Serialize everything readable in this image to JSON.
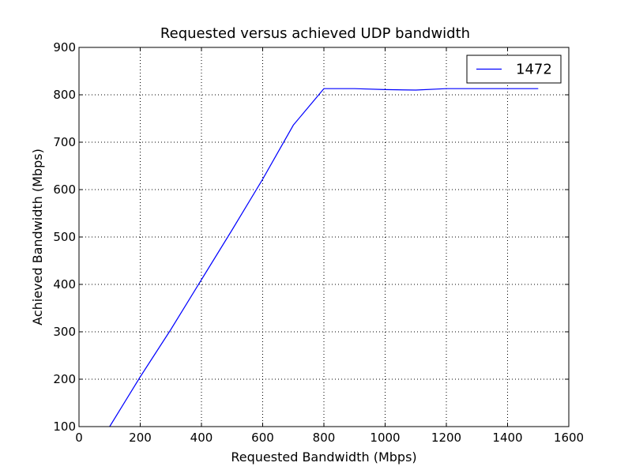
{
  "chart_data": {
    "type": "line",
    "title": "Requested versus achieved UDP bandwidth",
    "xlabel": "Requested Bandwidth (Mbps)",
    "ylabel": "Achieved Bandwidth (Mbps)",
    "xlim": [
      0,
      1600
    ],
    "ylim": [
      100,
      900
    ],
    "xticks": [
      0,
      200,
      400,
      600,
      800,
      1000,
      1200,
      1400,
      1600
    ],
    "yticks": [
      100,
      200,
      300,
      400,
      500,
      600,
      700,
      800,
      900
    ],
    "grid": true,
    "legend_position": "top-right",
    "series": [
      {
        "name": "1472",
        "color": "#0000ff",
        "x": [
          100,
          200,
          300,
          400,
          500,
          600,
          700,
          800,
          900,
          1000,
          1100,
          1200,
          1300,
          1400,
          1500
        ],
        "y": [
          100,
          205,
          305,
          410,
          515,
          622,
          736,
          813,
          813,
          811,
          810,
          813,
          813,
          813,
          813
        ]
      }
    ]
  }
}
